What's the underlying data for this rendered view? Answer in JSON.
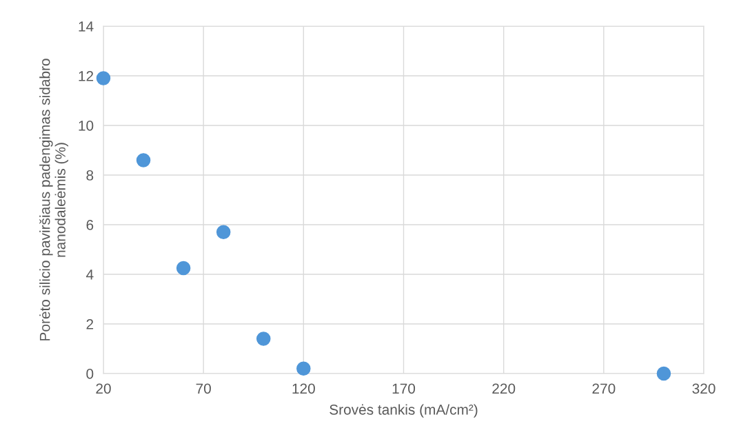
{
  "chart_data": {
    "type": "scatter",
    "xlabel": "Srovės tankis (mA/cm²)",
    "ylabel": "Porėto silicio paviršiaus padengimas sidabro\nnanodaleėmis (%)",
    "x": [
      20,
      40,
      60,
      80,
      100,
      120,
      300
    ],
    "series": [
      {
        "color": "#4f96d8",
        "values": [
          11.9,
          8.6,
          4.25,
          5.7,
          1.4,
          0.2,
          0
        ]
      }
    ],
    "xlim": [
      20,
      320
    ],
    "xticks": [
      20,
      70,
      120,
      170,
      220,
      270,
      320
    ],
    "ylim": [
      0,
      14
    ],
    "yticks": [
      0,
      2,
      4,
      6,
      8,
      10,
      12,
      14
    ],
    "grid": true,
    "marker": "circle",
    "legend": false
  }
}
